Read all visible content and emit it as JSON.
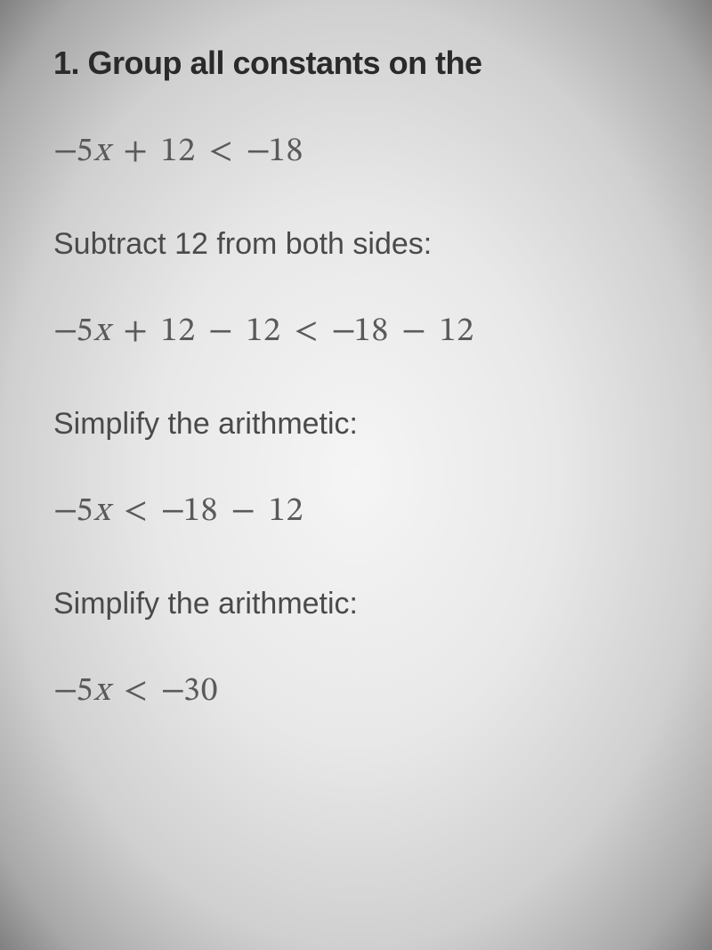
{
  "content": {
    "heading": "1. Group all constants on the",
    "lines": [
      {
        "type": "math",
        "html": "<span class='neg'>−</span>5<span class='var'>x</span><span class='op'> + </span>12<span class='op'> &lt; </span><span class='neg'>−</span>18"
      },
      {
        "type": "text",
        "text": "Subtract 12 from both sides:"
      },
      {
        "type": "math",
        "html": "<span class='neg'>−</span>5<span class='var'>x</span><span class='op'> + </span>12<span class='op'> − </span>12<span class='op'> &lt; </span><span class='neg'>−</span>18<span class='op'> − </span>12"
      },
      {
        "type": "text",
        "text": "Simplify the arithmetic:"
      },
      {
        "type": "math",
        "html": "<span class='neg'>−</span>5<span class='var'>x</span><span class='op'> &lt; </span><span class='neg'>−</span>18<span class='op'> − </span>12"
      },
      {
        "type": "text",
        "text": "Simplify the arithmetic:"
      },
      {
        "type": "math",
        "html": "<span class='neg'>−</span>5<span class='var'>x</span><span class='op'> &lt; </span><span class='neg'>−</span>30"
      }
    ]
  },
  "styling": {
    "background_gradient": "radial",
    "bg_center_color": "#f5f5f5",
    "bg_edge_color": "#808080",
    "heading_color": "#2a2a2a",
    "heading_fontsize": 36,
    "heading_fontweight": 700,
    "math_color": "#5a5a5a",
    "math_fontsize": 38,
    "math_fontfamily": "serif",
    "text_color": "#4a4a4a",
    "text_fontsize": 34,
    "text_fontweight": 400,
    "line_spacing": 58
  }
}
